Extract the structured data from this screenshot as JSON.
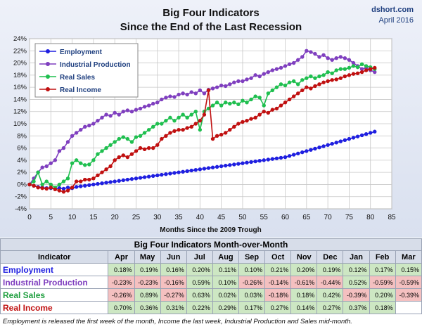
{
  "title_line1": "Big Four Indicators",
  "title_line2": "Since the End of the Last Recession",
  "brand": "dshort.com",
  "date": "April 2016",
  "colors": {
    "Employment": "#1f1fe0",
    "Industrial Production": "#7f3fbf",
    "Real Sales": "#1fbf4f",
    "Real Income": "#c01010"
  },
  "chart_data": {
    "type": "line",
    "title": "Big Four Indicators Since the End of the Last Recession",
    "xlabel": "Months Since the 2009 Trough",
    "ylabel": "",
    "xlim": [
      0,
      85
    ],
    "ylim": [
      -4,
      24
    ],
    "x_ticks": [
      0,
      5,
      10,
      15,
      20,
      25,
      30,
      35,
      40,
      45,
      50,
      55,
      60,
      65,
      70,
      75,
      80,
      85
    ],
    "y_ticks": [
      "-4%",
      "-2%",
      "0%",
      "2%",
      "4%",
      "6%",
      "8%",
      "10%",
      "12%",
      "14%",
      "16%",
      "18%",
      "20%",
      "22%",
      "24%"
    ],
    "grid": true,
    "legend_position": "top-left",
    "x": [
      0,
      1,
      2,
      3,
      4,
      5,
      6,
      7,
      8,
      9,
      10,
      11,
      12,
      13,
      14,
      15,
      16,
      17,
      18,
      19,
      20,
      21,
      22,
      23,
      24,
      25,
      26,
      27,
      28,
      29,
      30,
      31,
      32,
      33,
      34,
      35,
      36,
      37,
      38,
      39,
      40,
      41,
      42,
      43,
      44,
      45,
      46,
      47,
      48,
      49,
      50,
      51,
      52,
      53,
      54,
      55,
      56,
      57,
      58,
      59,
      60,
      61,
      62,
      63,
      64,
      65,
      66,
      67,
      68,
      69,
      70,
      71,
      72,
      73,
      74,
      75,
      76,
      77,
      78,
      79,
      80,
      81
    ],
    "series": [
      {
        "name": "Employment",
        "values": [
          0,
          -0.2,
          -0.4,
          -0.5,
          -0.6,
          -0.6,
          -0.7,
          -0.6,
          -0.7,
          -0.5,
          -0.6,
          -0.4,
          -0.3,
          -0.2,
          -0.1,
          0.0,
          0.1,
          0.2,
          0.3,
          0.4,
          0.5,
          0.6,
          0.7,
          0.8,
          0.9,
          1.0,
          1.1,
          1.2,
          1.3,
          1.4,
          1.5,
          1.6,
          1.7,
          1.8,
          1.9,
          2.0,
          2.1,
          2.2,
          2.3,
          2.4,
          2.5,
          2.6,
          2.7,
          2.8,
          2.9,
          3.0,
          3.1,
          3.2,
          3.3,
          3.4,
          3.5,
          3.6,
          3.7,
          3.8,
          3.9,
          4.0,
          4.1,
          4.2,
          4.3,
          4.4,
          4.5,
          4.7,
          4.9,
          5.1,
          5.3,
          5.5,
          5.7,
          5.9,
          6.1,
          6.3,
          6.5,
          6.7,
          6.9,
          7.1,
          7.3,
          7.5,
          7.7,
          7.9,
          8.1,
          8.3,
          8.5,
          8.7
        ]
      },
      {
        "name": "Industrial Production",
        "values": [
          0,
          1.0,
          2.0,
          2.8,
          3.0,
          3.5,
          4.0,
          5.5,
          6.0,
          7.0,
          8.0,
          8.5,
          9.0,
          9.5,
          9.7,
          10.0,
          10.5,
          11.0,
          11.5,
          11.3,
          11.8,
          11.5,
          12.0,
          12.2,
          12.0,
          12.3,
          12.5,
          12.8,
          13.0,
          13.3,
          13.5,
          14.0,
          14.3,
          14.5,
          14.4,
          14.8,
          15.0,
          14.8,
          15.2,
          15.0,
          15.5,
          15.0,
          15.6,
          15.8,
          16.0,
          16.3,
          16.2,
          16.5,
          16.8,
          17.0,
          17.0,
          17.3,
          17.5,
          18.0,
          17.8,
          18.2,
          18.5,
          18.8,
          19.0,
          19.2,
          19.5,
          19.8,
          20.0,
          20.5,
          21.0,
          22.0,
          21.8,
          21.5,
          21.0,
          21.3,
          20.8,
          20.5,
          20.8,
          21.0,
          20.8,
          20.5,
          20.0,
          19.5,
          19.0,
          19.2,
          18.8,
          18.5
        ]
      },
      {
        "name": "Real Sales",
        "values": [
          0,
          0.5,
          2.0,
          0,
          0.5,
          0,
          -0.5,
          0,
          0.5,
          1.0,
          3.5,
          4.0,
          3.5,
          3.2,
          3.3,
          4.0,
          5.0,
          5.5,
          6.0,
          6.5,
          7.0,
          7.5,
          7.8,
          7.5,
          7.0,
          7.8,
          8.0,
          8.5,
          9.0,
          9.5,
          10.0,
          10.0,
          10.5,
          11.0,
          10.5,
          11.0,
          11.5,
          11.0,
          11.5,
          12.0,
          9.0,
          12.0,
          12.5,
          13.0,
          13.5,
          13.0,
          13.5,
          13.3,
          13.5,
          13.2,
          13.8,
          13.5,
          14.0,
          14.5,
          14.3,
          13.0,
          15.0,
          15.5,
          16.0,
          16.5,
          16.3,
          16.8,
          17.0,
          16.5,
          17.2,
          17.5,
          17.8,
          17.5,
          17.8,
          18.0,
          18.5,
          18.3,
          18.8,
          19.0,
          19.0,
          19.2,
          19.5,
          19.3,
          19.8,
          19.5,
          19.3,
          19.0
        ]
      },
      {
        "name": "Real Income",
        "values": [
          0,
          -0.2,
          -0.5,
          -0.6,
          -0.7,
          -0.5,
          -0.8,
          -1.0,
          -1.2,
          -1.0,
          -0.5,
          0.5,
          0.5,
          0.8,
          0.8,
          1.0,
          1.5,
          2.0,
          2.5,
          3.0,
          4.0,
          4.5,
          4.8,
          4.5,
          5.0,
          5.5,
          6.0,
          5.8,
          6.0,
          6.0,
          6.5,
          7.5,
          8.0,
          8.5,
          8.8,
          9.0,
          9.0,
          9.3,
          9.5,
          10.0,
          10.5,
          11.5,
          15.5,
          7.5,
          8.0,
          8.2,
          8.5,
          9.0,
          9.5,
          10.0,
          10.3,
          10.5,
          10.8,
          11.0,
          11.5,
          12.0,
          11.8,
          12.3,
          12.5,
          13.0,
          13.5,
          14.0,
          14.5,
          15.0,
          15.5,
          16.0,
          15.8,
          16.2,
          16.5,
          16.8,
          17.0,
          17.2,
          17.3,
          17.5,
          17.8,
          18.0,
          18.2,
          18.3,
          18.5,
          18.8,
          19.0,
          19.2
        ]
      }
    ]
  },
  "table": {
    "title": "Big Four Indicators Month-over-Month",
    "indicator_header": "Indicator",
    "months": [
      "Apr",
      "May",
      "Jun",
      "Jul",
      "Aug",
      "Sep",
      "Oct",
      "Nov",
      "Dec",
      "Jan",
      "Feb",
      "Mar"
    ],
    "rows": [
      {
        "label": "Employment",
        "color": "#1f1fe0",
        "values": [
          "0.18%",
          "0.19%",
          "0.16%",
          "0.20%",
          "0.11%",
          "0.10%",
          "0.21%",
          "0.20%",
          "0.19%",
          "0.12%",
          "0.17%",
          "0.15%"
        ]
      },
      {
        "label": "Industrial Production",
        "color": "#7f3fbf",
        "values": [
          "-0.23%",
          "-0.23%",
          "-0.16%",
          "0.59%",
          "0.10%",
          "-0.26%",
          "-0.14%",
          "-0.61%",
          "-0.44%",
          "0.52%",
          "-0.59%",
          "-0.59%"
        ]
      },
      {
        "label": "Real Sales",
        "color": "#1f9f3f",
        "values": [
          "-0.26%",
          "0.89%",
          "-0.27%",
          "0.63%",
          "0.02%",
          "0.03%",
          "-0.18%",
          "0.18%",
          "0.42%",
          "-0.39%",
          "0.20%",
          "-0.39%"
        ]
      },
      {
        "label": "Real Income",
        "color": "#c01010",
        "values": [
          "0.70%",
          "0.36%",
          "0.31%",
          "0.22%",
          "0.29%",
          "0.17%",
          "0.27%",
          "0.14%",
          "0.27%",
          "0.37%",
          "0.18%",
          ""
        ]
      }
    ]
  },
  "footnote": "Employment is released the first week of the month, Income the last week, Industrial Production and Sales mid-month."
}
